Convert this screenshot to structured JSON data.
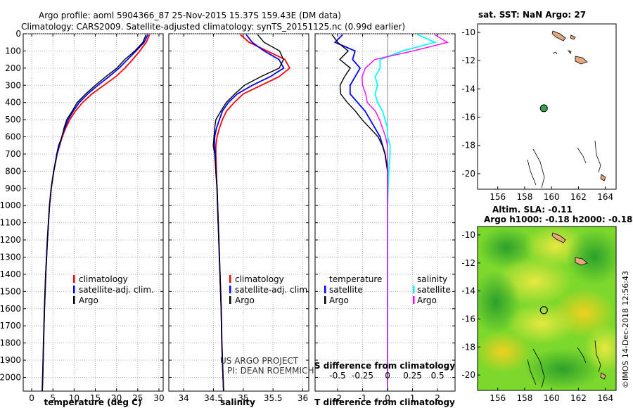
{
  "header": {
    "line1": "Argo profile: aoml 5904366_87 25-Nov-2015 15.37S 159.43E (DM data)",
    "line2": "Climatology: CARS2009. Satellite-adjusted climatology: synTS_20151125.nc (0.99d earlier)"
  },
  "colors": {
    "climatology": "#ff0000",
    "satellite": "#0000ff",
    "argo": "#000000",
    "sat_salinity": "#00ffff",
    "argo_salinity": "#ff00ff",
    "grid": "#b0b0b0"
  },
  "chart_data": [
    {
      "type": "line",
      "id": "temperature",
      "xlabel": "temperature (deg C)",
      "ylabel": "",
      "xlim": [
        -2,
        31
      ],
      "ylim": [
        2080,
        0
      ],
      "xticks": [
        0,
        5,
        10,
        15,
        20,
        25,
        30
      ],
      "yticks": [
        0,
        100,
        200,
        300,
        400,
        500,
        600,
        700,
        800,
        900,
        1000,
        1100,
        1200,
        1300,
        1400,
        1500,
        1600,
        1700,
        1800,
        1900,
        2000
      ],
      "depth": [
        5,
        50,
        100,
        150,
        200,
        250,
        300,
        350,
        400,
        450,
        500,
        550,
        600,
        650,
        700,
        800,
        900,
        1000,
        1200,
        1400,
        1600,
        1800,
        2000,
        2080
      ],
      "series": [
        {
          "name": "climatology",
          "values": [
            27.8,
            27.0,
            25.5,
            23.8,
            22.0,
            19.8,
            17.0,
            14.2,
            12.0,
            10.3,
            9.0,
            8.0,
            7.2,
            6.6,
            6.0,
            5.2,
            4.6,
            4.2,
            3.7,
            3.3,
            3.0,
            2.8,
            2.6,
            2.5
          ]
        },
        {
          "name": "satellite-adj. clim.",
          "values": [
            27.4,
            26.5,
            24.6,
            22.6,
            20.6,
            18.2,
            15.6,
            13.2,
            11.2,
            9.8,
            8.6,
            7.8,
            7.1,
            6.5,
            6.0,
            5.2,
            4.6,
            4.2,
            3.7,
            3.3,
            3.0,
            2.8,
            2.6,
            2.5
          ]
        },
        {
          "name": "Argo",
          "values": [
            27.1,
            26.2,
            24.2,
            22.0,
            20.0,
            17.6,
            15.0,
            12.6,
            10.8,
            9.5,
            8.4,
            7.6,
            7.0,
            6.4,
            5.9,
            5.2,
            4.6,
            4.2,
            3.7,
            3.3,
            3.0,
            2.8,
            2.6,
            2.5
          ]
        }
      ],
      "legend": [
        "climatology",
        "satellite-adj. clim.",
        "Argo"
      ]
    },
    {
      "type": "line",
      "id": "salinity",
      "xlabel": "salinity",
      "ylabel": "",
      "xlim": [
        33.75,
        36.1
      ],
      "ylim": [
        2080,
        0
      ],
      "xticks": [
        34,
        34.5,
        35,
        35.5,
        36
      ],
      "depth": [
        5,
        50,
        100,
        150,
        200,
        250,
        300,
        350,
        400,
        450,
        500,
        550,
        600,
        650,
        700,
        800,
        900,
        1000,
        1200,
        1400,
        1600,
        1800,
        2000,
        2080
      ],
      "series": [
        {
          "name": "climatology",
          "values": [
            34.95,
            35.1,
            35.4,
            35.7,
            35.78,
            35.6,
            35.3,
            35.0,
            34.85,
            34.72,
            34.65,
            34.6,
            34.56,
            34.54,
            34.54,
            34.55,
            34.56,
            34.57,
            34.59,
            34.61,
            34.63,
            34.64,
            34.66,
            34.67
          ]
        },
        {
          "name": "satellite-adj. clim.",
          "values": [
            35.05,
            35.15,
            35.35,
            35.6,
            35.68,
            35.45,
            35.15,
            34.9,
            34.75,
            34.65,
            34.6,
            34.55,
            34.52,
            34.52,
            34.53,
            34.54,
            34.56,
            34.57,
            34.59,
            34.61,
            34.63,
            34.64,
            34.66,
            34.67
          ]
        },
        {
          "name": "Argo",
          "values": [
            35.25,
            35.35,
            35.6,
            35.68,
            35.6,
            35.3,
            35.02,
            34.85,
            34.72,
            34.62,
            34.55,
            34.52,
            34.5,
            34.5,
            34.52,
            34.54,
            34.56,
            34.57,
            34.59,
            34.61,
            34.63,
            34.64,
            34.66,
            34.67
          ]
        }
      ],
      "legend": [
        "climatology",
        "satellite-adj. clim.",
        "Argo"
      ],
      "annotation": [
        "US ARGO PROJECT",
        "PI: DEAN ROEMMICH"
      ]
    },
    {
      "type": "line",
      "id": "difference",
      "xlabel": "T difference from climatology",
      "top_xlabel": "S difference from climatology",
      "xlim": [
        -2.9,
        2.7
      ],
      "ylim": [
        2080,
        0
      ],
      "xticks": [
        -2,
        -1,
        0,
        1,
        2
      ],
      "top_xticks": [
        "-0.5",
        "-0.25",
        "0",
        "0.25",
        "0.5"
      ],
      "top_xticks_at": [
        -2,
        -1,
        0,
        1,
        2
      ],
      "depth": [
        5,
        50,
        100,
        150,
        200,
        250,
        300,
        350,
        400,
        450,
        500,
        550,
        600,
        650,
        700,
        800,
        900,
        1000,
        1200,
        1400,
        1600,
        1800,
        2000,
        2080
      ],
      "series": [
        {
          "name": "temperature satellite",
          "values": [
            -1.8,
            -2.1,
            -1.3,
            -1.4,
            -1.1,
            -1.3,
            -1.5,
            -1.5,
            -1.2,
            -0.9,
            -0.7,
            -0.5,
            -0.3,
            -0.2,
            -0.1,
            0.0,
            0.0,
            0.0,
            0.0,
            0.0,
            0.0,
            0.0,
            0.0,
            0.0
          ]
        },
        {
          "name": "temperature Argo",
          "values": [
            -2.2,
            -2.0,
            -1.6,
            -1.9,
            -1.5,
            -1.7,
            -1.9,
            -1.9,
            -1.6,
            -1.3,
            -1.0,
            -0.7,
            -0.4,
            -0.2,
            -0.1,
            0.0,
            0.0,
            0.0,
            0.0,
            0.0,
            0.0,
            0.0,
            0.0,
            0.0
          ]
        },
        {
          "name": "salinity satellite",
          "values": [
            1.2,
            1.9,
            0.6,
            -0.3,
            -0.3,
            -0.5,
            -0.4,
            -0.5,
            -0.4,
            -0.2,
            -0.1,
            0.0,
            0.0,
            0.1,
            0.1,
            0.05,
            0.02,
            0.0,
            0.0,
            0.0,
            0.0,
            0.0,
            0.0,
            0.0
          ]
        },
        {
          "name": "salinity Argo",
          "values": [
            1.9,
            2.4,
            1.0,
            -0.5,
            -0.9,
            -1.0,
            -1.0,
            -0.9,
            -0.8,
            -0.5,
            -0.3,
            -0.2,
            -0.1,
            0.0,
            0.0,
            0.0,
            0.0,
            0.0,
            0.0,
            0.0,
            0.0,
            0.0,
            0.0,
            0.0
          ]
        }
      ],
      "legend": {
        "temperature_title": "temperature",
        "salinity_title": "salinity",
        "satellite": "satellite",
        "argo": "Argo"
      }
    }
  ],
  "map_top": {
    "title": "sat. SST: NaN Argo: 27",
    "xticks": [
      "156",
      "158",
      "160",
      "162",
      "164"
    ],
    "yticks": [
      "-10",
      "-12",
      "-14",
      "-16",
      "-18",
      "-20"
    ],
    "xlim": [
      154.5,
      164.8
    ],
    "ylim": [
      -21.1,
      -9.4
    ],
    "argo_position": {
      "lon": 159.43,
      "lat": -15.37
    }
  },
  "map_bottom": {
    "title1": "Altim. SLA: -0.11",
    "title2": "Argo h1000: -0.18 h2000: -0.18",
    "xticks": [
      "156",
      "158",
      "160",
      "162",
      "164"
    ],
    "yticks": [
      "-10",
      "-12",
      "-14",
      "-16",
      "-18",
      "-20"
    ],
    "xlim": [
      154.5,
      164.8
    ],
    "ylim": [
      -21.1,
      -9.4
    ],
    "argo_position": {
      "lon": 159.43,
      "lat": -15.37
    }
  },
  "footer": {
    "credit": "©IMOS 14-Dec-2018 12:56:43"
  }
}
